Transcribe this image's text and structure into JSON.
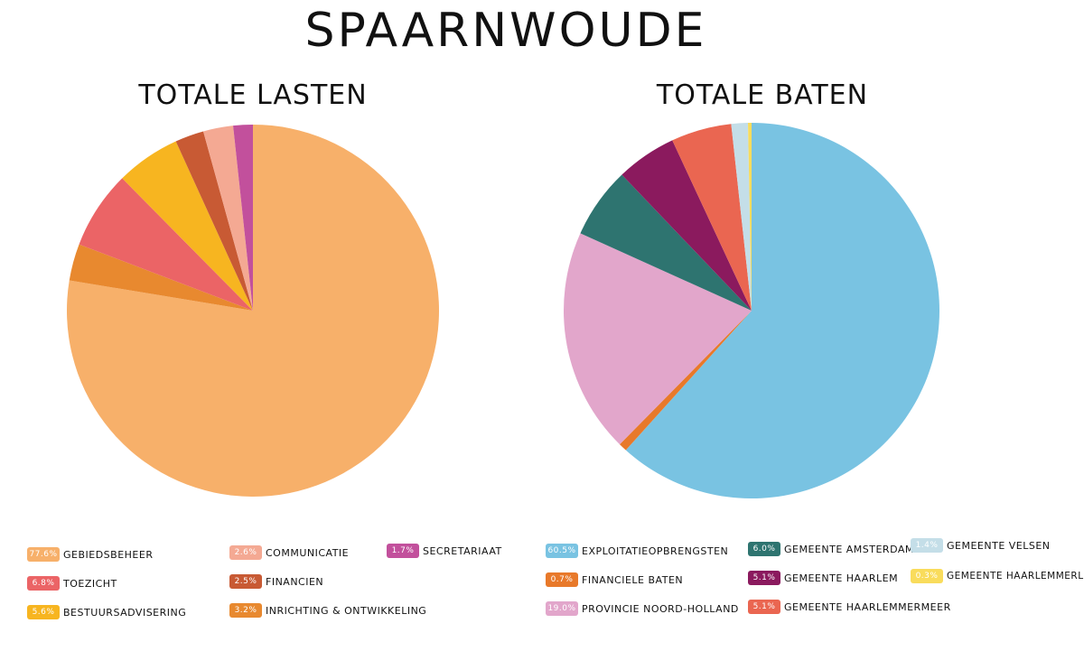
{
  "page": {
    "title": "SPAARNWOUDE"
  },
  "chart_data": [
    {
      "type": "pie",
      "title": "TOTALE LASTEN",
      "slices": [
        {
          "label": "GEBIEDSBEHEER",
          "value": 77.6,
          "display": "77.6%",
          "color": "#F7B06A"
        },
        {
          "label": "INRICHTING & ONTWIKKELING",
          "value": 3.2,
          "display": "3.2%",
          "color": "#E8892F"
        },
        {
          "label": "TOEZICHT",
          "value": 6.8,
          "display": "6.8%",
          "color": "#EB6466"
        },
        {
          "label": "BESTUURSADVISERING",
          "value": 5.6,
          "display": "5.6%",
          "color": "#F7B520"
        },
        {
          "label": "FINANCIEN",
          "value": 2.5,
          "display": "2.5%",
          "color": "#C85A34"
        },
        {
          "label": "COMMUNICATIE",
          "value": 2.6,
          "display": "2.6%",
          "color": "#F4A993"
        },
        {
          "label": "SECRETARIAAT",
          "value": 1.7,
          "display": "1.7%",
          "color": "#C2509C"
        }
      ]
    },
    {
      "type": "pie",
      "title": "TOTALE BATEN",
      "slices": [
        {
          "label": "EXPLOITATIEOPBRENGSTEN",
          "value": 60.5,
          "display": "60.5%",
          "color": "#79C3E2"
        },
        {
          "label": "FINANCIELE BATEN",
          "value": 0.7,
          "display": "0.7%",
          "color": "#E8792A"
        },
        {
          "label": "PROVINCIE NOORD-HOLLAND",
          "value": 19.0,
          "display": "19.0%",
          "color": "#E2A6CB"
        },
        {
          "label": "GEMEENTE AMSTERDAM",
          "value": 6.0,
          "display": "6.0%",
          "color": "#2E7470"
        },
        {
          "label": "GEMEENTE HAARLEM",
          "value": 5.1,
          "display": "5.1%",
          "color": "#8B1A5E"
        },
        {
          "label": "GEMEENTE HAARLEMMERMEER",
          "value": 5.1,
          "display": "5.1%",
          "color": "#EA6651"
        },
        {
          "label": "GEMEENTE VELSEN",
          "value": 1.4,
          "display": "1.4%",
          "color": "#C4DEE8"
        },
        {
          "label": "GEMEENTE HAARLEMMERLIEDE",
          "value": 0.3,
          "display": "0.3%",
          "color": "#F9DC5C"
        }
      ]
    }
  ]
}
